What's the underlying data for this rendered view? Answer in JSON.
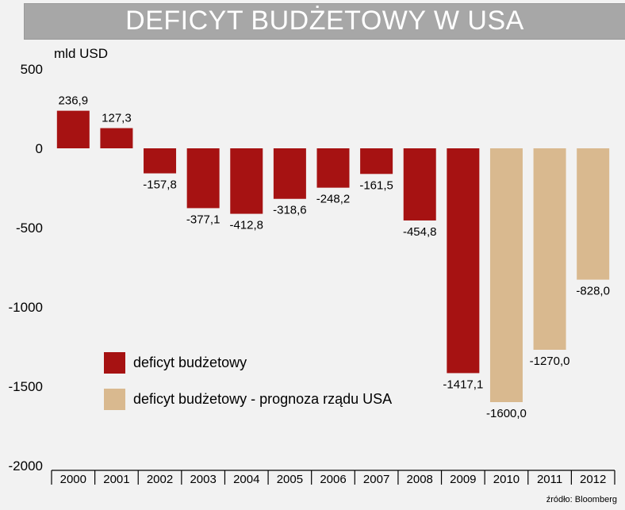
{
  "title": "DEFICYT BUDŻETOWY W USA",
  "unit_label": "mld USD",
  "source": "źródło: Bloomberg",
  "colors": {
    "actual": "#a61212",
    "forecast": "#d9b98f",
    "banner": "#a7a7a7",
    "background": "#f2f2f2"
  },
  "legend": [
    {
      "label": "deficyt budżetowy",
      "color": "#a61212"
    },
    {
      "label": "deficyt budżetowy - prognoza rządu USA",
      "color": "#d9b98f"
    }
  ],
  "chart_data": {
    "type": "bar",
    "categories": [
      "2000",
      "2001",
      "2002",
      "2003",
      "2004",
      "2005",
      "2006",
      "2007",
      "2008",
      "2009",
      "2010",
      "2011",
      "2012"
    ],
    "values": [
      236.9,
      127.3,
      -157.8,
      -377.1,
      -412.8,
      -318.6,
      -248.2,
      -161.5,
      -454.8,
      -1417.1,
      -1600.0,
      -1270.0,
      -828.0
    ],
    "value_labels": [
      "236,9",
      "127,3",
      "-157,8",
      "-377,1",
      "-412,8",
      "-318,6",
      "-248,2",
      "-161,5",
      "-454,8",
      "-1417,1",
      "-1600,0",
      "-1270,0",
      "-828,0"
    ],
    "forecast": [
      false,
      false,
      false,
      false,
      false,
      false,
      false,
      false,
      false,
      false,
      true,
      true,
      true
    ],
    "title": "DEFICYT BUDŻETOWY W USA",
    "xlabel": "",
    "ylabel": "mld USD",
    "ylim": [
      -2000,
      500
    ],
    "yticks": [
      500,
      0,
      -500,
      -1000,
      -1500,
      -2000
    ],
    "ytick_labels": [
      "500",
      "0",
      "-500",
      "-1000",
      "-1500",
      "-2000"
    ],
    "grid": false,
    "legend_position": "bottom-left"
  }
}
